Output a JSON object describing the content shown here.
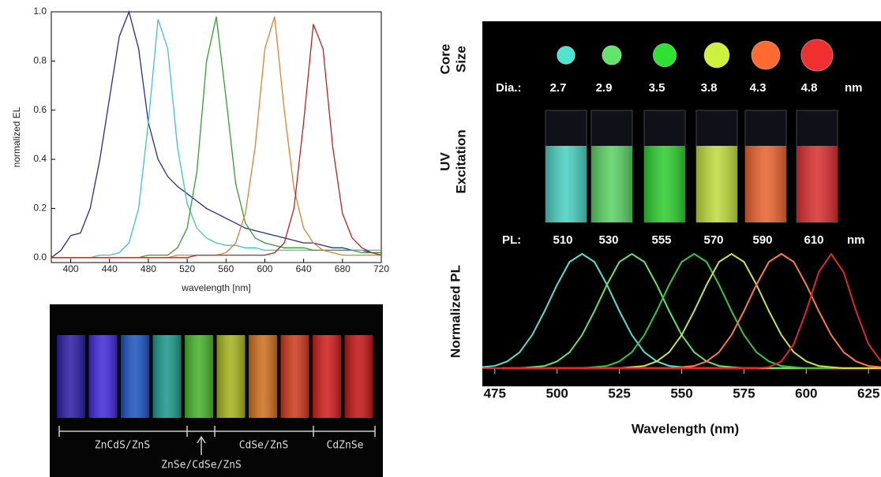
{
  "chart_data": [
    {
      "type": "line",
      "xlabel": "wavelength [nm]",
      "ylabel": "normalized EL",
      "x": [
        380,
        390,
        400,
        410,
        420,
        430,
        440,
        450,
        460,
        470,
        480,
        490,
        500,
        510,
        520,
        530,
        540,
        550,
        560,
        570,
        580,
        590,
        600,
        610,
        620,
        630,
        640,
        650,
        660,
        670,
        680,
        690,
        700,
        710,
        720
      ],
      "xlim": [
        380,
        720
      ],
      "xticks": [
        400,
        440,
        480,
        520,
        560,
        600,
        640,
        680,
        720
      ],
      "ylim": [
        -0.02,
        1.0
      ],
      "yticks": [
        {
          "value": 0,
          "label": "0.0"
        },
        0.2,
        0.4,
        0.6,
        0.8,
        {
          "value": 1,
          "label": "1.0"
        }
      ],
      "series": [
        {
          "color": "#2a2aa0",
          "values": [
            0,
            0.03,
            0.09,
            0.1,
            0.2,
            0.4,
            0.65,
            0.9,
            1.0,
            0.85,
            0.55,
            0.4,
            0.33,
            0.29,
            0.26,
            0.23,
            0.2,
            0.18,
            0.16,
            0.14,
            0.12,
            0.11,
            0.1,
            0.09,
            0.08,
            0.07,
            0.06,
            0.06,
            0.05,
            0.04,
            0.04,
            0.03,
            0.03,
            0.02,
            0.02
          ]
        },
        {
          "color": "#3cc8c0",
          "values": [
            0,
            0,
            0,
            0,
            0,
            0.01,
            0.01,
            0.02,
            0.06,
            0.2,
            0.55,
            0.97,
            0.85,
            0.45,
            0.22,
            0.12,
            0.08,
            0.06,
            0.05,
            0.05,
            0.04,
            0.04,
            0.03,
            0.03,
            0.03,
            0.03,
            0.03,
            0.03,
            0.03,
            0.03,
            0.03,
            0.03,
            0.03,
            0.03,
            0.03
          ]
        },
        {
          "color": "#30a030",
          "values": [
            0,
            0,
            0,
            0,
            0,
            0,
            0,
            0,
            0,
            0,
            0.01,
            0.01,
            0.01,
            0.04,
            0.12,
            0.35,
            0.8,
            0.98,
            0.65,
            0.3,
            0.14,
            0.08,
            0.06,
            0.05,
            0.04,
            0.04,
            0.04,
            0.03,
            0.03,
            0.03,
            0.03,
            0.03,
            0.02,
            0.02,
            0.02
          ]
        },
        {
          "color": "#e08030",
          "values": [
            0,
            0,
            0,
            0,
            0,
            0,
            0,
            0,
            0,
            0,
            0,
            0,
            0,
            0.01,
            0.01,
            0.01,
            0.01,
            0.01,
            0.02,
            0.06,
            0.18,
            0.45,
            0.85,
            0.98,
            0.6,
            0.28,
            0.12,
            0.06,
            0.03,
            0.02,
            0.01,
            0.01,
            0.01,
            0.01,
            0.01
          ]
        },
        {
          "color": "#c02020",
          "values": [
            0,
            0,
            0,
            0,
            0,
            0,
            0,
            0,
            0,
            0,
            0,
            0,
            0,
            0,
            0,
            0.01,
            0.01,
            0.01,
            0.01,
            0.01,
            0.01,
            0.01,
            0.01,
            0.02,
            0.06,
            0.2,
            0.55,
            0.95,
            0.85,
            0.45,
            0.18,
            0.08,
            0.04,
            0.02,
            0.01
          ]
        }
      ]
    },
    {
      "type": "line",
      "xlabel": "Wavelength (nm)",
      "ylabel": "Normalized PL",
      "x": [
        470,
        475,
        480,
        485,
        490,
        495,
        500,
        505,
        510,
        515,
        520,
        525,
        530,
        535,
        540,
        545,
        550,
        555,
        560,
        565,
        570,
        575,
        580,
        585,
        590,
        595,
        600,
        605,
        610,
        615,
        620,
        625,
        630
      ],
      "xlim": [
        470,
        630
      ],
      "xticks": [
        475,
        500,
        525,
        550,
        575,
        600,
        625
      ],
      "ylim": [
        0,
        1
      ],
      "series": [
        {
          "color": "#4fe3d0",
          "values": [
            0.01,
            0.02,
            0.06,
            0.14,
            0.29,
            0.5,
            0.73,
            0.93,
            1,
            0.93,
            0.73,
            0.5,
            0.29,
            0.14,
            0.06,
            0.02,
            0.01,
            0,
            0,
            0,
            0,
            0,
            0,
            0,
            0,
            0,
            0,
            0,
            0,
            0,
            0,
            0,
            0
          ]
        },
        {
          "color": "#62e46a",
          "values": [
            0,
            0,
            0,
            0,
            0.01,
            0.02,
            0.06,
            0.14,
            0.29,
            0.5,
            0.73,
            0.93,
            1,
            0.93,
            0.73,
            0.5,
            0.29,
            0.14,
            0.06,
            0.02,
            0.01,
            0,
            0,
            0,
            0,
            0,
            0,
            0,
            0,
            0,
            0,
            0,
            0
          ]
        },
        {
          "color": "#38c838",
          "values": [
            0,
            0,
            0,
            0,
            0,
            0,
            0,
            0,
            0,
            0.01,
            0.02,
            0.06,
            0.14,
            0.29,
            0.5,
            0.73,
            0.93,
            1,
            0.93,
            0.73,
            0.5,
            0.29,
            0.14,
            0.06,
            0.02,
            0.01,
            0,
            0,
            0,
            0,
            0,
            0,
            0
          ]
        },
        {
          "color": "#c8e63c",
          "values": [
            0,
            0,
            0,
            0,
            0,
            0,
            0,
            0,
            0,
            0,
            0,
            0,
            0.01,
            0.02,
            0.06,
            0.14,
            0.29,
            0.5,
            0.73,
            0.93,
            1,
            0.93,
            0.73,
            0.5,
            0.29,
            0.14,
            0.06,
            0.02,
            0.01,
            0,
            0,
            0,
            0
          ]
        },
        {
          "color": "#ff7a3c",
          "values": [
            0,
            0,
            0,
            0,
            0,
            0,
            0,
            0,
            0,
            0,
            0,
            0,
            0,
            0,
            0,
            0,
            0.01,
            0.02,
            0.06,
            0.14,
            0.29,
            0.5,
            0.73,
            0.93,
            1,
            0.93,
            0.73,
            0.5,
            0.29,
            0.14,
            0.06,
            0.02,
            0.01
          ]
        },
        {
          "color": "#e0282a",
          "values": [
            0,
            0,
            0,
            0,
            0,
            0,
            0,
            0,
            0,
            0,
            0,
            0,
            0,
            0,
            0,
            0,
            0,
            0,
            0,
            0,
            0,
            0,
            0,
            0.01,
            0.06,
            0.21,
            0.5,
            0.84,
            1,
            0.84,
            0.5,
            0.21,
            0.06
          ]
        }
      ]
    }
  ],
  "vial_photo": {
    "labels": [
      "ZnCdS/ZnS",
      "ZnSe/CdSe/ZnS",
      "CdSe/ZnS",
      "CdZnSe"
    ]
  },
  "qd_panel": {
    "core_size_label": [
      "Core",
      "Size"
    ],
    "dia_label": "Dia.:",
    "diameters": [
      2.7,
      2.9,
      3.5,
      3.8,
      4.3,
      4.8
    ],
    "dia_unit": "nm",
    "uv_label": [
      "UV",
      "Excitation"
    ],
    "pl_label": "PL:",
    "pl_peaks": [
      510,
      530,
      555,
      570,
      590,
      610
    ],
    "pl_unit": "nm"
  }
}
